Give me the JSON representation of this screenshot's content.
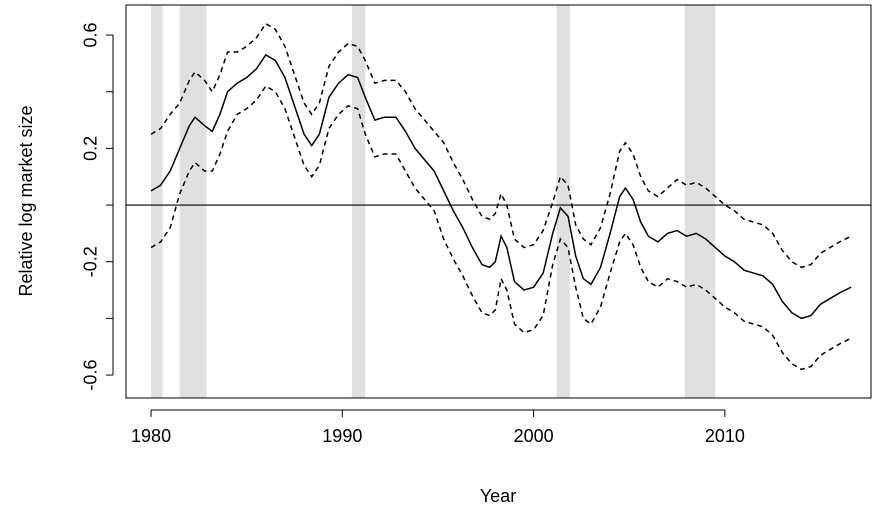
{
  "chart_data": {
    "type": "line",
    "xlabel": "Year",
    "ylabel": "Relative log market size",
    "x": [
      1980.0,
      1980.5,
      1981,
      1981.5,
      1982,
      1982.3,
      1982.8,
      1983.2,
      1983.6,
      1984,
      1984.5,
      1985,
      1985.5,
      1986,
      1986.5,
      1987,
      1987.5,
      1988,
      1988.4,
      1988.8,
      1989.3,
      1989.8,
      1990.3,
      1990.8,
      1991.2,
      1991.7,
      1992.2,
      1992.8,
      1993.3,
      1993.8,
      1994.3,
      1994.8,
      1995.3,
      1995.8,
      1996.3,
      1996.8,
      1997.3,
      1997.7,
      1998.0,
      1998.3,
      1998.6,
      1999.0,
      1999.5,
      2000.0,
      2000.5,
      2001.0,
      2001.4,
      2001.8,
      2002.2,
      2002.6,
      2003.0,
      2003.5,
      2004.0,
      2004.5,
      2004.8,
      2005.2,
      2005.6,
      2006.0,
      2006.5,
      2007.0,
      2007.5,
      2008.0,
      2008.5,
      2009.0,
      2009.5,
      2010.0,
      2010.5,
      2011.0,
      2011.5,
      2012.0,
      2012.5,
      2013.0,
      2013.5,
      2014.0,
      2014.5,
      2015.0,
      2015.5,
      2016.0,
      2016.6
    ],
    "series": [
      {
        "color": "#000000",
        "linestyle": "solid",
        "values": [
          0.05,
          0.07,
          0.12,
          0.2,
          0.28,
          0.31,
          0.28,
          0.26,
          0.32,
          0.4,
          0.43,
          0.45,
          0.48,
          0.53,
          0.51,
          0.45,
          0.35,
          0.25,
          0.21,
          0.25,
          0.38,
          0.43,
          0.46,
          0.45,
          0.38,
          0.3,
          0.31,
          0.31,
          0.26,
          0.2,
          0.16,
          0.12,
          0.05,
          -0.02,
          -0.08,
          -0.15,
          -0.21,
          -0.22,
          -0.2,
          -0.11,
          -0.15,
          -0.27,
          -0.3,
          -0.29,
          -0.24,
          -0.1,
          -0.01,
          -0.04,
          -0.18,
          -0.26,
          -0.28,
          -0.22,
          -0.1,
          0.03,
          0.06,
          0.02,
          -0.06,
          -0.11,
          -0.13,
          -0.1,
          -0.09,
          -0.11,
          -0.1,
          -0.12,
          -0.15,
          -0.18,
          -0.2,
          -0.23,
          -0.24,
          -0.25,
          -0.28,
          -0.34,
          -0.38,
          -0.4,
          -0.39,
          -0.35,
          -0.33,
          -0.31,
          -0.29
        ]
      },
      {
        "color": "#000000",
        "linestyle": "dashed",
        "values": [
          0.25,
          0.27,
          0.32,
          0.36,
          0.44,
          0.47,
          0.44,
          0.4,
          0.46,
          0.54,
          0.54,
          0.56,
          0.59,
          0.64,
          0.62,
          0.56,
          0.46,
          0.36,
          0.32,
          0.36,
          0.49,
          0.54,
          0.57,
          0.56,
          0.51,
          0.43,
          0.44,
          0.44,
          0.4,
          0.34,
          0.3,
          0.26,
          0.22,
          0.15,
          0.09,
          0.02,
          -0.04,
          -0.05,
          -0.03,
          0.04,
          0,
          -0.12,
          -0.15,
          -0.14,
          -0.09,
          0.01,
          0.1,
          0.07,
          -0.07,
          -0.12,
          -0.14,
          -0.08,
          0.04,
          0.19,
          0.22,
          0.18,
          0.1,
          0.05,
          0.03,
          0.06,
          0.09,
          0.07,
          0.08,
          0.06,
          0.03,
          0,
          -0.02,
          -0.05,
          -0.06,
          -0.07,
          -0.1,
          -0.16,
          -0.2,
          -0.22,
          -0.21,
          -0.17,
          -0.15,
          -0.13,
          -0.11
        ]
      },
      {
        "color": "#000000",
        "linestyle": "dashed",
        "values": [
          -0.15,
          -0.13,
          -0.08,
          0.04,
          0.12,
          0.15,
          0.12,
          0.12,
          0.18,
          0.26,
          0.32,
          0.34,
          0.37,
          0.42,
          0.4,
          0.34,
          0.24,
          0.14,
          0.1,
          0.14,
          0.27,
          0.32,
          0.35,
          0.34,
          0.25,
          0.17,
          0.18,
          0.18,
          0.12,
          0.06,
          0.02,
          -0.02,
          -0.12,
          -0.19,
          -0.25,
          -0.32,
          -0.38,
          -0.39,
          -0.37,
          -0.26,
          -0.3,
          -0.42,
          -0.45,
          -0.44,
          -0.39,
          -0.21,
          -0.12,
          -0.15,
          -0.29,
          -0.4,
          -0.42,
          -0.36,
          -0.24,
          -0.13,
          -0.1,
          -0.14,
          -0.22,
          -0.27,
          -0.29,
          -0.26,
          -0.27,
          -0.29,
          -0.28,
          -0.3,
          -0.33,
          -0.36,
          -0.38,
          -0.41,
          -0.42,
          -0.43,
          -0.46,
          -0.52,
          -0.56,
          -0.58,
          -0.57,
          -0.53,
          -0.51,
          -0.49,
          -0.47
        ]
      }
    ],
    "shaded_regions": [
      [
        1980.0,
        1980.6
      ],
      [
        1981.5,
        1982.9
      ],
      [
        1990.5,
        1991.2
      ],
      [
        2001.2,
        2001.9
      ],
      [
        2007.9,
        2009.5
      ]
    ],
    "shade_color": "#e0e0e0",
    "hline": 0,
    "xlim": [
      1978.69,
      2017.64
    ],
    "ylim": [
      -0.681,
      0.706
    ],
    "xticks": [
      1980,
      1990,
      2000,
      2010
    ],
    "yticks": [
      -0.6,
      {
        "value": -0.4,
        "label": null
      },
      -0.2,
      {
        "value": 0,
        "label": null
      },
      0.2,
      {
        "value": 0.4,
        "label": null
      },
      0.6
    ]
  }
}
